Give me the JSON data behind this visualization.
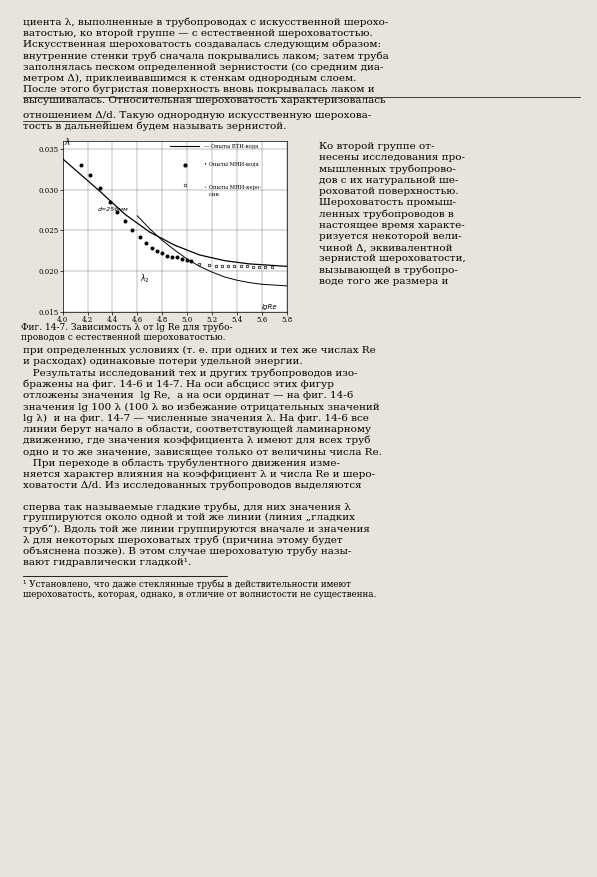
{
  "page_bg": "#e8e4dc",
  "chart_bg": "#ffffff",
  "chart_xlim": [
    4.0,
    5.8
  ],
  "chart_ylim": [
    0.015,
    0.036
  ],
  "chart_xticks": [
    4.0,
    4.2,
    4.4,
    4.6,
    4.8,
    5.0,
    5.2,
    5.4,
    5.6,
    5.8
  ],
  "chart_yticks": [
    0.015,
    0.02,
    0.025,
    0.03,
    0.035
  ],
  "line1_x": [
    4.0,
    4.15,
    4.3,
    4.5,
    4.7,
    4.9,
    5.1,
    5.3,
    5.5,
    5.7,
    5.8
  ],
  "line1_y": [
    0.0338,
    0.0318,
    0.0298,
    0.027,
    0.0248,
    0.0232,
    0.022,
    0.0213,
    0.0209,
    0.0207,
    0.0206
  ],
  "line2_x": [
    4.6,
    4.7,
    4.8,
    4.9,
    5.0,
    5.1,
    5.2,
    5.3,
    5.4,
    5.5,
    5.6,
    5.7,
    5.8
  ],
  "line2_y": [
    0.0268,
    0.0252,
    0.0238,
    0.0226,
    0.0215,
    0.0206,
    0.0199,
    0.0193,
    0.0189,
    0.0186,
    0.0184,
    0.0183,
    0.0182
  ],
  "scatter1_x": [
    4.15,
    4.22,
    4.3,
    4.38,
    4.44,
    4.5,
    4.56,
    4.62,
    4.67,
    4.72,
    4.76,
    4.8,
    4.84,
    4.88,
    4.92,
    4.96,
    5.0,
    5.03
  ],
  "scatter1_y": [
    0.033,
    0.0318,
    0.0302,
    0.0285,
    0.0273,
    0.0262,
    0.0251,
    0.0242,
    0.0235,
    0.0229,
    0.0225,
    0.0222,
    0.0219,
    0.0218,
    0.0217,
    0.0215,
    0.0214,
    0.0213
  ],
  "scatter2_x": [
    5.1,
    5.18,
    5.23,
    5.28,
    5.33,
    5.38,
    5.43,
    5.48,
    5.53,
    5.58,
    5.63,
    5.68
  ],
  "scatter2_y": [
    0.0209,
    0.0208,
    0.0207,
    0.0207,
    0.0207,
    0.0206,
    0.0206,
    0.0206,
    0.0205,
    0.0205,
    0.0205,
    0.0205
  ],
  "top_lines": [
    "циента λ, выполненные в трубопроводах с искусственной шерохо-",
    "ватостью, ко второй группе — с естественной шероховатостью.",
    "Искусственная шероховатость создавалась следующим образом:",
    "внутренние стенки труб сначала покрывались лаком; затем труба",
    "заполнялась песком определенной зернистости (со средним диа-",
    "метром Δ), приклеивавшимся к стенкам однородным слоем.",
    "После этого бугристая поверхность вновь покрывалась лаком и",
    "высушивалась. Относительная шероховатость характеризовалась"
  ],
  "mid_lines_left": [
    "отношением Δ/d. Такую однородную искусственную шерохова-",
    "тость в дальнейшем будем называть зернистой."
  ],
  "right_col_lines": [
    "Ко второй группе от-",
    "несены исследования про-",
    "мышленных трубопрово-",
    "дов с их натуральной ше-",
    "роховатой поверхностью.",
    "Шероховатость промыш-",
    "ленных трубопроводов в",
    "настоящее время характе-",
    "ризуется некоторой вели-",
    "чиной Δ, эквивалентной",
    "зернистой шероховатости,",
    "вызывающей в трубопро-",
    "воде того же размера и"
  ],
  "body_lines": [
    "при определенных условиях (т. е. при одних и тех же числах Re",
    "и расходах) одинаковые потери удельной энергии.",
    "   Результаты исследований тех и других трубопроводов изо-",
    "бражены на фиг. 14-6 и 14-7. На оси абсцисс этих фигур",
    "отложены значения  lg Re,  а на оси ординат — на фиг. 14-6",
    "значения lg 100 λ (100 λ во избежание отрицательных значений",
    "lg λ)  и на фиг. 14-7 — численные значения λ. На фиг. 14-6 все",
    "линии берут начало в области, соответствующей ламинарному",
    "движению, где значения коэффициента λ имеют для всех труб",
    "одно и то же значение, зависящее только от величины числа Re.",
    "   При переходе в область трубулентного движения изме-",
    "няется характер влияния на коэффициент λ и числа Re и шеро-",
    "ховатости Δ/d. Из исследованных трубопроводов выделяются"
  ],
  "smooth_lines": [
    "сперва так называемые гладкие трубы, для них значения λ",
    "группируются около одной и той же линии (линия „гладких",
    "труб“). Вдоль той же линии группируются вначале и значения",
    "λ для некоторых шероховатых труб (причина этому будет",
    "объяснена позже). В этом случае шероховатую трубу назы-",
    "вают гидравлически гладкой¹."
  ],
  "footnote_lines": [
    "¹ Установлено, что даже стеклянные трубы в действительности имеют",
    "шероховатость, которая, однако, в отличие от волнистости не существенна."
  ]
}
